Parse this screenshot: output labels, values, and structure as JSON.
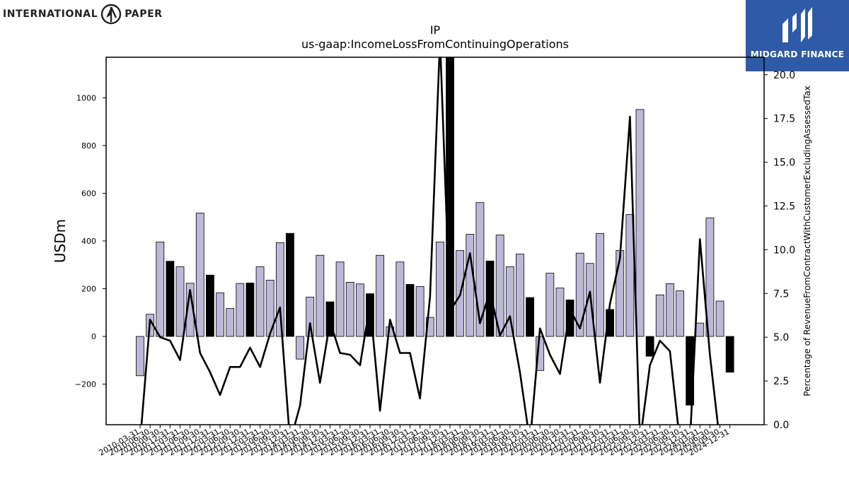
{
  "brand_left": {
    "name_part1": "INTERNATIONAL",
    "name_part2": "PAPER"
  },
  "brand_right": {
    "name": "MIDGARD FINANCE",
    "bg_color": "#2e5aa8"
  },
  "chart_data": {
    "type": "bar",
    "title": "IP",
    "subtitle": "us-gaap:IncomeLossFromContinuingOperations",
    "ylabel": "USDm",
    "y2label": "Percentage of RevenueFromContractWithCustomerExcludingAssessedTax",
    "ylim": [
      -370,
      1170
    ],
    "y2lim": [
      0,
      21.0
    ],
    "yticks": [
      -200,
      0,
      200,
      400,
      600,
      800,
      1000
    ],
    "y2ticks": [
      0.0,
      2.5,
      5.0,
      7.5,
      10.0,
      12.5,
      15.0,
      17.5,
      20.0
    ],
    "colors": {
      "bar_quarter": "#bcb8d8",
      "bar_q4": "#000000",
      "line": "#000000"
    },
    "categories": [
      "2010-03-31",
      "2010-06-30",
      "2010-09-30",
      "2010-12-31",
      "2011-03-31",
      "2011-06-30",
      "2011-09-30",
      "2011-12-31",
      "2012-03-31",
      "2012-06-30",
      "2012-09-30",
      "2012-12-31",
      "2013-03-31",
      "2013-06-30",
      "2013-09-30",
      "2013-12-31",
      "2014-03-31",
      "2014-06-30",
      "2014-09-30",
      "2014-12-31",
      "2015-03-31",
      "2015-06-30",
      "2015-09-30",
      "2015-12-31",
      "2016-03-31",
      "2016-06-30",
      "2016-09-30",
      "2016-12-31",
      "2017-03-31",
      "2017-06-30",
      "2017-09-30",
      "2017-12-31",
      "2018-03-31",
      "2018-06-30",
      "2018-09-30",
      "2018-12-31",
      "2019-03-31",
      "2019-06-30",
      "2019-09-30",
      "2019-12-31",
      "2020-03-31",
      "2020-06-30",
      "2020-09-30",
      "2020-12-31",
      "2021-03-31",
      "2021-06-30",
      "2021-09-30",
      "2021-12-31",
      "2022-03-31",
      "2022-06-30",
      "2022-09-30",
      "2022-12-31",
      "2023-03-31",
      "2023-06-30",
      "2023-09-30",
      "2023-12-31",
      "2024-03-31",
      "2024-06-30",
      "2024-09-30",
      "2024-12-31"
    ],
    "tick_labels": [
      "2010-03-31",
      "2010-06-30",
      "2010-09-30",
      "2010-12-31",
      "2011-03-31",
      "2011-06-30",
      "2011-09-30",
      "2011-12-31",
      "2012-03-31",
      "2012-06-30",
      "2012-09-30",
      "2012-12-31",
      "2013-03-31",
      "2013-06-30",
      "2013-09-30",
      "2013-12-31",
      "2014-03-31",
      "2014-06-30",
      "2014-09-30",
      "2014-12-31",
      "2015-03-31",
      "2015-06-30",
      "2015-09-30",
      "2015-12-31",
      "2016-03-31",
      "2016-06-30",
      "2016-09-30",
      "2016-12-31",
      "2017-03-31",
      "2017-06-30",
      "2017-09-30",
      "2017-12-31",
      "2018-03-31",
      "2018-06-30",
      "2018-09-30",
      "2018-12-31",
      "2019-03-31",
      "2019-06-30",
      "2019-09-30",
      "2019-12-31",
      "2020-03-31",
      "2020-06-30",
      "2020-09-30",
      "2020-12-31",
      "2021-03-31",
      "2021-06-30",
      "2021-09-30",
      "2021-12-31",
      "2022-03-31",
      "2022-06-30",
      "2022-09-30",
      "2022-12-31",
      "2023-03-31",
      "2023-06-30",
      "2023-09-30",
      "2023-12-31",
      "2024-03-31",
      "2024-06-30",
      "2024-09-30",
      "2024-12-31"
    ],
    "series": [
      {
        "values": [
          -165,
          93,
          396,
          315,
          292,
          223,
          517,
          257,
          183,
          117,
          222,
          224,
          292,
          236,
          393,
          432,
          -95,
          165,
          340,
          145,
          312,
          227,
          220,
          179,
          340,
          40,
          312,
          218,
          209,
          80,
          396,
          1200,
          360,
          428,
          561,
          316,
          425,
          292,
          345,
          163,
          -143,
          265,
          203,
          153,
          349,
          306,
          431,
          113,
          360,
          511,
          951,
          -83,
          174,
          221,
          191,
          -288,
          56,
          497,
          148,
          -150
        ]
      },
      {
        "axis": "right",
        "values": [
          -1.0,
          6.0,
          5.0,
          4.8,
          3.7,
          7.7,
          4.1,
          3.0,
          1.7,
          3.3,
          3.3,
          4.4,
          3.3,
          5.2,
          6.7,
          -1.0,
          1.1,
          5.8,
          2.4,
          5.9,
          4.1,
          4.0,
          3.4,
          6.9,
          0.8,
          6.0,
          4.1,
          4.1,
          1.5,
          7.3,
          22.0,
          6.5,
          7.4,
          9.8,
          5.8,
          7.6,
          5.1,
          6.2,
          3.0,
          -1.0,
          5.5,
          4.0,
          2.9,
          6.6,
          5.5,
          7.6,
          2.4,
          6.9,
          9.5,
          17.6,
          -1.0,
          3.4,
          4.8,
          4.2,
          -1.0,
          -1.0,
          10.6,
          4.0,
          -1.0,
          -1.0
        ]
      }
    ]
  }
}
